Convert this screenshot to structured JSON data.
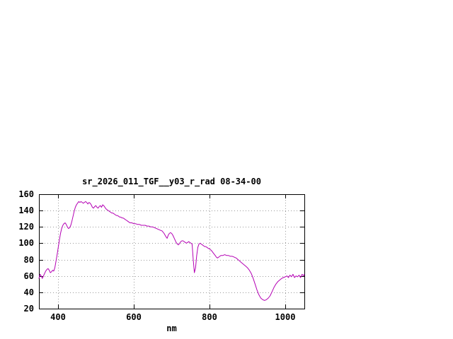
{
  "chart_data": {
    "type": "line",
    "title": "sr_2026_011_TGF__y03_r_rad 08-34-00",
    "xlabel": "nm",
    "ylabel": "",
    "xlim": [
      350,
      1050
    ],
    "ylim": [
      20,
      160
    ],
    "xticks": [
      400,
      600,
      800,
      1000
    ],
    "yticks": [
      20,
      40,
      60,
      80,
      100,
      120,
      140,
      160
    ],
    "grid": true,
    "legend_position": "none",
    "line_color": "#b400b4",
    "grid_color": "#9a9a9a",
    "frame_color": "#000000",
    "x": [
      350,
      353,
      356,
      359,
      362,
      365,
      368,
      371,
      374,
      377,
      380,
      383,
      386,
      389,
      392,
      395,
      398,
      401,
      404,
      407,
      410,
      413,
      416,
      419,
      422,
      425,
      428,
      431,
      434,
      437,
      440,
      443,
      446,
      449,
      452,
      455,
      458,
      461,
      464,
      467,
      470,
      473,
      476,
      479,
      482,
      485,
      488,
      491,
      494,
      497,
      500,
      503,
      506,
      509,
      512,
      515,
      518,
      521,
      524,
      527,
      530,
      533,
      536,
      539,
      542,
      545,
      548,
      551,
      554,
      557,
      560,
      563,
      566,
      569,
      572,
      575,
      578,
      581,
      584,
      587,
      590,
      595,
      600,
      605,
      610,
      615,
      620,
      625,
      630,
      635,
      640,
      645,
      650,
      655,
      660,
      665,
      670,
      675,
      680,
      685,
      688,
      691,
      694,
      697,
      700,
      703,
      706,
      709,
      712,
      715,
      718,
      721,
      724,
      727,
      730,
      733,
      736,
      739,
      742,
      745,
      748,
      751,
      754,
      757,
      760,
      763,
      766,
      769,
      772,
      775,
      778,
      781,
      784,
      787,
      790,
      793,
      796,
      800,
      805,
      810,
      815,
      818,
      821,
      824,
      827,
      830,
      835,
      840,
      845,
      850,
      855,
      860,
      865,
      870,
      875,
      880,
      885,
      890,
      895,
      900,
      905,
      910,
      915,
      920,
      925,
      930,
      935,
      940,
      945,
      950,
      955,
      960,
      965,
      970,
      975,
      980,
      985,
      990,
      995,
      1000,
      1004,
      1008,
      1012,
      1016,
      1020,
      1024,
      1028,
      1032,
      1036,
      1040,
      1044,
      1048,
      1050
    ],
    "y": [
      57,
      62,
      60,
      57,
      60,
      63,
      66,
      68,
      69,
      67,
      64,
      65,
      67,
      66,
      70,
      78,
      86,
      95,
      104,
      112,
      118,
      122,
      124,
      125,
      123,
      120,
      118,
      119,
      122,
      127,
      133,
      139,
      144,
      147,
      149,
      151,
      150,
      151,
      150,
      149,
      150,
      151,
      150,
      148,
      150,
      149,
      147,
      144,
      143,
      145,
      146,
      144,
      143,
      145,
      146,
      144,
      147,
      146,
      144,
      142,
      141,
      140,
      139,
      138,
      137,
      137,
      136,
      135,
      134,
      134,
      133,
      132,
      132,
      131,
      131,
      130,
      129,
      128,
      127,
      126,
      125,
      125,
      124,
      124,
      123,
      123,
      122,
      122,
      122,
      121,
      121,
      120,
      120,
      119,
      118,
      117,
      116,
      115,
      112,
      108,
      106,
      110,
      112,
      113,
      112,
      110,
      107,
      104,
      101,
      99,
      98,
      100,
      102,
      103,
      103,
      102,
      101,
      100,
      101,
      102,
      101,
      100,
      99,
      80,
      64,
      70,
      85,
      95,
      99,
      100,
      99,
      98,
      97,
      96,
      96,
      95,
      94,
      93,
      91,
      88,
      85,
      83,
      82,
      83,
      84,
      85,
      85,
      86,
      85,
      85,
      84,
      84,
      83,
      82,
      80,
      78,
      76,
      74,
      72,
      70,
      67,
      63,
      57,
      50,
      43,
      37,
      33,
      31,
      30,
      31,
      33,
      36,
      41,
      46,
      50,
      53,
      55,
      57,
      58,
      59,
      60,
      58,
      61,
      59,
      62,
      58,
      60,
      59,
      61,
      58,
      62,
      60,
      62
    ]
  }
}
